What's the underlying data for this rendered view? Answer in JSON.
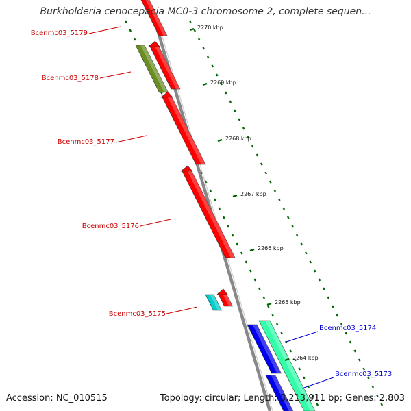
{
  "title": "Burkholderia cenocepacia MC0-3 chromosome 2, complete sequen...",
  "footer": {
    "accession": "Accession: NC_010515",
    "summary": "Topology: circular; Length: 3,213,911 bp; Genes: 2,803"
  },
  "ticks": [
    {
      "label": "2270 kbp"
    },
    {
      "label": "2269 kbp"
    },
    {
      "label": "2268 kbp"
    },
    {
      "label": "2267 kbp"
    },
    {
      "label": "2266 kbp"
    },
    {
      "label": "2265 kbp"
    },
    {
      "label": "2264 kbp"
    }
  ],
  "genes": [
    {
      "label": "Bcenmc03_5179",
      "color": "#cc0000",
      "fill": "#ff0000",
      "strand": "forward"
    },
    {
      "label": "Bcenmc03_5178",
      "color": "#cc0000",
      "fill": "#ff0000",
      "strand": "forward"
    },
    {
      "label": "Bcenmc03_5177",
      "color": "#cc0000",
      "fill": "#ff0000",
      "strand": "forward"
    },
    {
      "label": "Bcenmc03_5176",
      "color": "#cc0000",
      "fill": "#ff0000",
      "strand": "forward"
    },
    {
      "label": "Bcenmc03_5175",
      "color": "#cc0000",
      "fill": "#ff0000",
      "strand": "forward"
    },
    {
      "label": "Bcenmc03_5174",
      "color": "#0000cc",
      "fill": "#0000ee",
      "strand": "reverse"
    },
    {
      "label": "Bcenmc03_5173",
      "color": "#0000cc",
      "fill": "#0000ee",
      "strand": "reverse"
    }
  ],
  "features": {
    "olive": "#6b8e23",
    "cyan": "#00cccc",
    "mint": "#33ffaa",
    "backbone": "#888888",
    "gc_skew": "#006600"
  }
}
